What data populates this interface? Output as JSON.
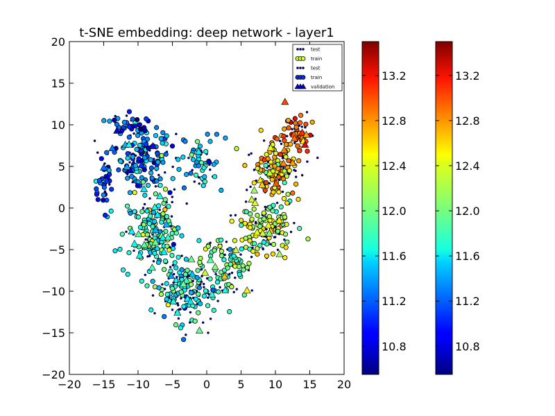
{
  "chart_data": {
    "type": "scatter",
    "title": "t-SNE embedding: deep network - layer1",
    "xlabel": "",
    "ylabel": "",
    "xlim": [
      -20,
      20
    ],
    "ylim": [
      -20,
      20
    ],
    "x_ticks": [
      -20,
      -15,
      -10,
      -5,
      0,
      5,
      10,
      15,
      20
    ],
    "x_tick_labels": [
      "−20",
      "−15",
      "−10",
      "−5",
      "0",
      "5",
      "10",
      "15",
      "20"
    ],
    "y_ticks": [
      -20,
      -15,
      -10,
      -5,
      0,
      5,
      10,
      15,
      20
    ],
    "y_tick_labels": [
      "−20",
      "−15",
      "−10",
      "−5",
      "0",
      "5",
      "10",
      "15",
      "20"
    ],
    "grid": false,
    "legend_placement": "top-right",
    "legend": [
      {
        "label": "test",
        "marker": "small-dot",
        "color": "#000080"
      },
      {
        "label": "train",
        "marker": "circle",
        "color": "#c8ff37"
      },
      {
        "label": "test",
        "marker": "small-dot",
        "color": "#000080"
      },
      {
        "label": "train",
        "marker": "circle",
        "color": "#0028ff"
      },
      {
        "label": "validation",
        "marker": "triangle",
        "color": "#0000cd"
      }
    ],
    "colorbars": [
      {
        "vmin": 10.55,
        "vmax": 13.5,
        "tick_values": [
          10.8,
          11.2,
          11.6,
          12.0,
          12.4,
          12.8,
          13.2
        ],
        "tick_labels": [
          "10.8",
          "11.2",
          "11.6",
          "12.0",
          "12.4",
          "12.8",
          "13.2"
        ],
        "colormap": "jet"
      },
      {
        "vmin": 10.55,
        "vmax": 13.5,
        "tick_values": [
          10.8,
          11.2,
          11.6,
          12.0,
          12.4,
          12.8,
          13.2
        ],
        "tick_labels": [
          "10.8",
          "11.2",
          "11.6",
          "12.0",
          "12.4",
          "12.8",
          "13.2"
        ],
        "colormap": "jet"
      }
    ],
    "clusters": [
      {
        "name": "left-upper",
        "center": [
          -9,
          6
        ],
        "spread": [
          3.5,
          3
        ],
        "value": 11.3,
        "n": 160
      },
      {
        "name": "left-middle",
        "center": [
          -8,
          -3
        ],
        "spread": [
          3.5,
          4
        ],
        "value": 11.8,
        "n": 200
      },
      {
        "name": "bottom-center",
        "center": [
          -3,
          -10
        ],
        "spread": [
          4,
          3
        ],
        "value": 11.7,
        "n": 170
      },
      {
        "name": "center-upper",
        "center": [
          -1,
          5
        ],
        "spread": [
          2.5,
          3
        ],
        "value": 11.6,
        "n": 60
      },
      {
        "name": "center-lower",
        "center": [
          3,
          -7
        ],
        "spread": [
          3,
          3.5
        ],
        "value": 11.9,
        "n": 110
      },
      {
        "name": "right-upper",
        "center": [
          10,
          5
        ],
        "spread": [
          3,
          3
        ],
        "value": 12.5,
        "n": 160
      },
      {
        "name": "right-top",
        "center": [
          13,
          9
        ],
        "spread": [
          2,
          2
        ],
        "value": 12.9,
        "n": 60
      },
      {
        "name": "right-middle",
        "center": [
          9,
          -2
        ],
        "spread": [
          3.5,
          3.5
        ],
        "value": 12.2,
        "n": 150
      },
      {
        "name": "far-left-tail",
        "center": [
          -15,
          3
        ],
        "spread": [
          1.2,
          4
        ],
        "value": 11.1,
        "n": 40
      },
      {
        "name": "top-left-arm",
        "center": [
          -11,
          10
        ],
        "spread": [
          2.5,
          1
        ],
        "value": 11.0,
        "n": 40
      }
    ]
  }
}
